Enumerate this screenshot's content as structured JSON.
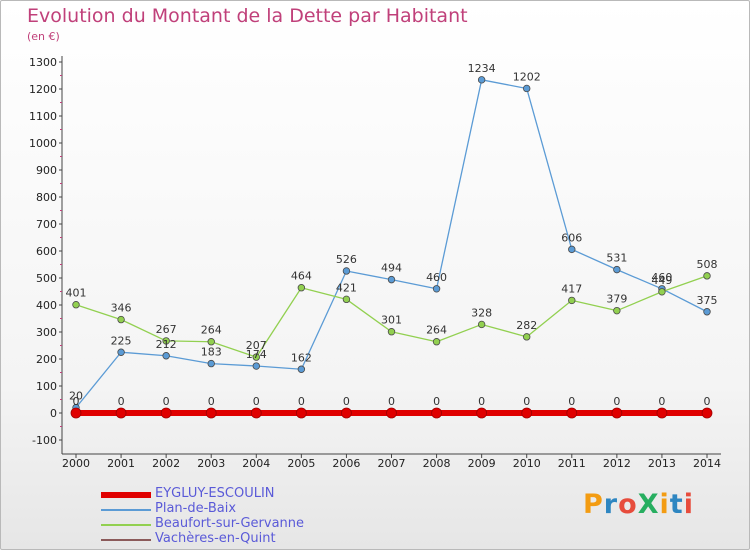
{
  "header": {
    "title": "Evolution du Montant de la Dette par Habitant",
    "subtitle": "(en €)"
  },
  "logo": {
    "text": "ProXiti",
    "colors": [
      "#f39c12",
      "#2e86c1",
      "#e74c3c",
      "#27ae60"
    ]
  },
  "chart_data": {
    "type": "line",
    "title": "Evolution du Montant de la Dette par Habitant",
    "ylabel": "(en €)",
    "xlabel": "",
    "x": [
      "2000",
      "2001",
      "2002",
      "2003",
      "2004",
      "2005",
      "2006",
      "2007",
      "2008",
      "2009",
      "2010",
      "2011",
      "2012",
      "2013",
      "2014"
    ],
    "ylim": [
      -100,
      1300
    ],
    "yticks": [
      -100,
      0,
      100,
      200,
      300,
      400,
      500,
      600,
      700,
      800,
      900,
      1000,
      1100,
      1200,
      1300
    ],
    "grid": false,
    "legend_position": "bottom-left",
    "series": [
      {
        "name": "EYGLUY-ESCOULIN",
        "color": "#e00000",
        "values": [
          0,
          0,
          0,
          0,
          0,
          0,
          0,
          0,
          0,
          0,
          0,
          0,
          0,
          0,
          0
        ],
        "labels": [
          "0",
          "0",
          "0",
          "0",
          "0",
          "0",
          "0",
          "0",
          "0",
          "0",
          "0",
          "0",
          "0",
          "0",
          "0"
        ]
      },
      {
        "name": "Plan-de-Baix",
        "color": "#5b9bd5",
        "values": [
          20,
          225,
          212,
          183,
          174,
          162,
          526,
          494,
          460,
          1234,
          1202,
          606,
          531,
          460,
          375
        ],
        "labels": [
          "20",
          "225",
          "212",
          "183",
          "174",
          "162",
          "526",
          "494",
          "460",
          "1234",
          "1202",
          "606",
          "531",
          "460",
          "375"
        ]
      },
      {
        "name": "Beaufort-sur-Gervanne",
        "color": "#92d050",
        "values": [
          401,
          346,
          267,
          264,
          207,
          464,
          421,
          301,
          264,
          328,
          282,
          417,
          379,
          449,
          508
        ],
        "labels": [
          "401",
          "346",
          "267",
          "264",
          "207",
          "464",
          "421",
          "301",
          "264",
          "328",
          "282",
          "417",
          "379",
          "449",
          "508"
        ]
      },
      {
        "name": "Vachères-en-Quint",
        "color": "#8b5a5a",
        "values": [
          0,
          0,
          0,
          0,
          0,
          0,
          0,
          0,
          0,
          0,
          0,
          0,
          0,
          0,
          0
        ],
        "labels": [
          "0",
          "0",
          "0",
          "0",
          "0",
          "0",
          "0",
          "0",
          "0",
          "0",
          "0",
          "0",
          "0",
          "0",
          "0"
        ]
      }
    ]
  }
}
